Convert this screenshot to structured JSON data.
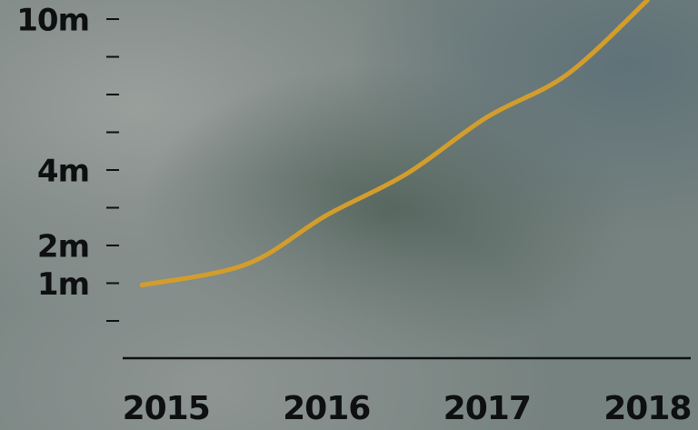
{
  "chart_data": {
    "type": "line",
    "x": [
      2014.85,
      2015.5,
      2016,
      2016.5,
      2017,
      2017.5,
      2018
    ],
    "series": [
      {
        "color": "#d39d2c",
        "values": [
          0.95,
          1.5,
          2.8,
          3.9,
          6.1,
          7.8,
          10.75
        ]
      }
    ],
    "xlim": [
      2014.73,
      2018.27
    ],
    "xticks": [
      2015,
      2016,
      2017,
      2018
    ],
    "ylim": [
      -1,
      10
    ],
    "yticks": [
      {
        "value": 0,
        "label": null
      },
      {
        "value": 1,
        "label": "1m"
      },
      {
        "value": 2,
        "label": "2m"
      },
      {
        "value": 3,
        "label": null
      },
      {
        "value": 4,
        "label": "4m"
      },
      {
        "value": 5.5,
        "label": null
      },
      {
        "value": 7,
        "label": null
      },
      {
        "value": 8.5,
        "label": null
      },
      {
        "value": 10,
        "label": "10m"
      }
    ]
  }
}
